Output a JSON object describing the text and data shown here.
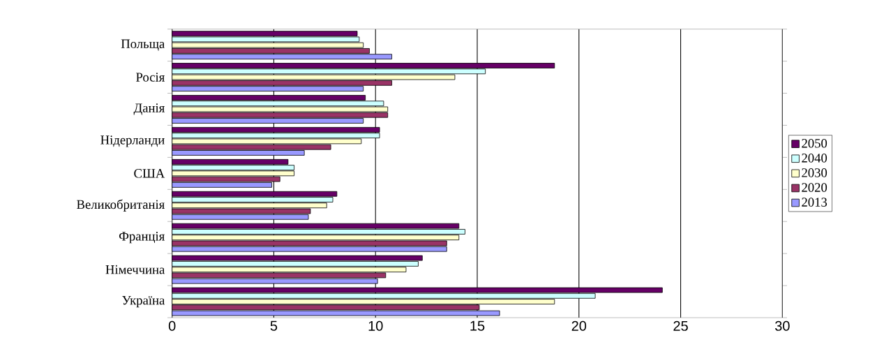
{
  "chart_data": {
    "type": "bar",
    "orientation": "horizontal",
    "categories": [
      "Польща",
      "Росія",
      "Данія",
      "Нідерланди",
      "США",
      "Великобританія",
      "Франція",
      "Німеччина",
      "Україна"
    ],
    "series": [
      {
        "name": "2050",
        "color": "#660066",
        "values": [
          9.1,
          18.8,
          9.5,
          10.2,
          5.7,
          8.1,
          14.1,
          12.3,
          24.1
        ]
      },
      {
        "name": "2040",
        "color": "#ccffff",
        "values": [
          9.2,
          15.4,
          10.4,
          10.2,
          6.0,
          7.9,
          14.4,
          12.1,
          20.8
        ]
      },
      {
        "name": "2030",
        "color": "#ffffcc",
        "values": [
          9.4,
          13.9,
          10.6,
          9.3,
          6.0,
          7.6,
          14.1,
          11.5,
          18.8
        ]
      },
      {
        "name": "2020",
        "color": "#993366",
        "values": [
          9.7,
          10.8,
          10.6,
          7.8,
          5.3,
          6.8,
          13.5,
          10.5,
          15.1
        ]
      },
      {
        "name": "2013",
        "color": "#9999ff",
        "values": [
          10.8,
          9.4,
          9.4,
          6.5,
          4.9,
          6.7,
          13.5,
          10.1,
          16.1
        ]
      }
    ],
    "xlim": [
      0,
      30
    ],
    "xticks": [
      0,
      5,
      10,
      15,
      20,
      25,
      30
    ],
    "grid": "x",
    "legend": "right"
  }
}
